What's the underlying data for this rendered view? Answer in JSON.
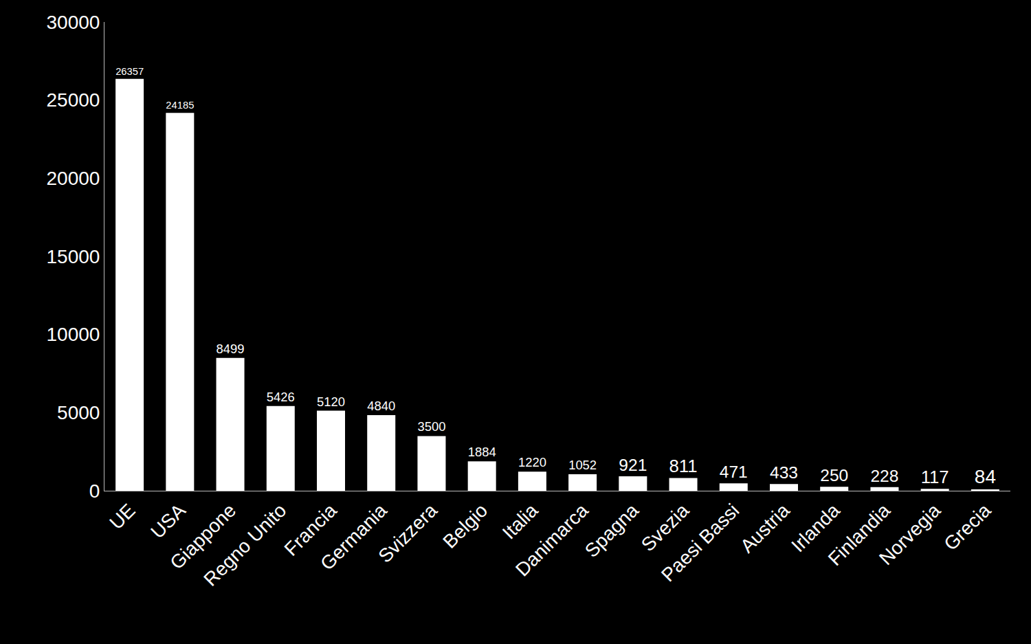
{
  "chart_data": {
    "type": "bar",
    "categories": [
      "UE",
      "USA",
      "Giappone",
      "Regno Unito",
      "Francia",
      "Germania",
      "Svizzera",
      "Belgio",
      "Italia",
      "Danimarca",
      "Spagna",
      "Svezia",
      "Paesi Bassi",
      "Austria",
      "Irlanda",
      "Finlandia",
      "Norvegia",
      "Grecia"
    ],
    "values": [
      26357,
      24185,
      8499,
      5426,
      5120,
      4840,
      3500,
      1884,
      1220,
      1052,
      921,
      811,
      471,
      433,
      250,
      228,
      117,
      84
    ],
    "color": "#ffffff",
    "ylim": [
      0,
      30000
    ],
    "yticks": [
      0,
      5000,
      10000,
      15000,
      20000,
      25000,
      30000
    ],
    "grid": false,
    "data_labels": true
  }
}
